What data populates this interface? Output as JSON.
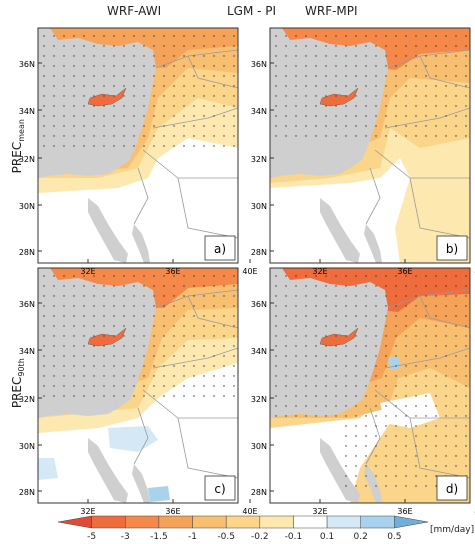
{
  "header": {
    "left": "WRF-AWI",
    "center": "LGM - PI",
    "right": "WRF-MPI"
  },
  "rows": {
    "top": {
      "base": "PREC",
      "sub": "mean"
    },
    "bottom": {
      "base": "PREC",
      "sub": "90th"
    }
  },
  "axes": {
    "lat_ticks": [
      "36N",
      "34N",
      "32N",
      "30N",
      "28N"
    ],
    "lon_ticks": [
      "32E",
      "36E",
      "40E"
    ]
  },
  "panels": [
    {
      "id": "a",
      "label": "a)"
    },
    {
      "id": "b",
      "label": "b)"
    },
    {
      "id": "c",
      "label": "c)"
    },
    {
      "id": "d",
      "label": "d)"
    }
  ],
  "colorbar": {
    "unit": "[mm/day]",
    "tick_labels": [
      "-5",
      "-3",
      "-1.5",
      "-1",
      "-0.5",
      "-0.2",
      "-0.1",
      "0.1",
      "0.2",
      "0.5"
    ],
    "colors": [
      "#e34a33",
      "#ef6c3c",
      "#f4894a",
      "#f6a35a",
      "#f9bf70",
      "#fbd58a",
      "#fde9b0",
      "#ffffff",
      "#d4e9f5",
      "#a9d2ec",
      "#6fb0db"
    ]
  },
  "palette": {
    "land_mask": "#cfcfcf",
    "boundary": "#9a9a9a",
    "frame": "#333333"
  }
}
